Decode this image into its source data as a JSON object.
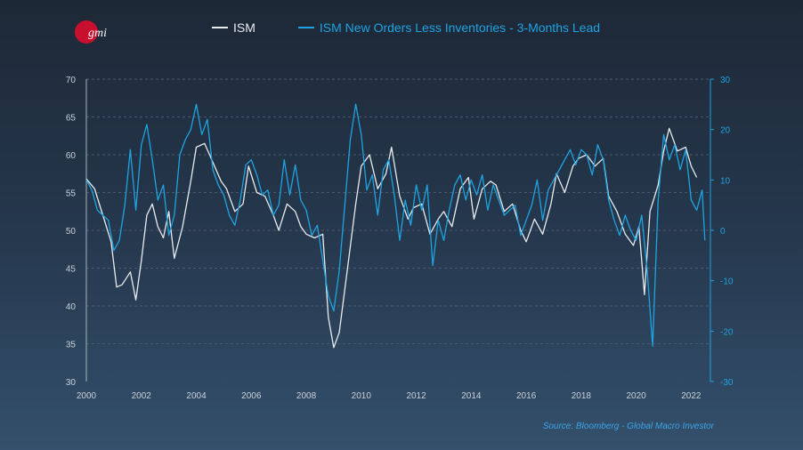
{
  "logo": {
    "text": "gmi",
    "color": "#c8102e"
  },
  "legend": {
    "ism_label": "ISM",
    "orders_label": "ISM New Orders Less Inventories - 3-Months Lead"
  },
  "source_text": "Source: Bloomberg - Global Macro Investor",
  "colors": {
    "ism": "#e8ecf0",
    "orders": "#1fa3e2",
    "axis_left": "#c9d1da",
    "grid": "#4a5a6e",
    "source": "#3ea3e8"
  },
  "chart_data": {
    "type": "line",
    "xlim": [
      2000,
      2022.7
    ],
    "x_ticks": [
      2000,
      2002,
      2004,
      2006,
      2008,
      2010,
      2012,
      2014,
      2016,
      2018,
      2020,
      2022
    ],
    "y_left": {
      "lim": [
        30,
        70
      ],
      "ticks": [
        30,
        35,
        40,
        45,
        50,
        55,
        60,
        65,
        70
      ]
    },
    "y_right": {
      "lim": [
        -30,
        30
      ],
      "ticks": [
        -30,
        -20,
        -10,
        0,
        10,
        20,
        30
      ]
    },
    "grid": "horizontal dashed",
    "legend_position": "top",
    "series": [
      {
        "name": "ISM",
        "axis": "left",
        "points": [
          [
            2000.0,
            56.8
          ],
          [
            2000.3,
            55.5
          ],
          [
            2000.6,
            52.0
          ],
          [
            2000.9,
            48.5
          ],
          [
            2001.1,
            42.5
          ],
          [
            2001.3,
            42.8
          ],
          [
            2001.6,
            44.5
          ],
          [
            2001.8,
            40.8
          ],
          [
            2002.0,
            46.0
          ],
          [
            2002.2,
            52.0
          ],
          [
            2002.4,
            53.5
          ],
          [
            2002.6,
            50.5
          ],
          [
            2002.8,
            49.0
          ],
          [
            2003.0,
            52.5
          ],
          [
            2003.2,
            46.3
          ],
          [
            2003.5,
            50.5
          ],
          [
            2003.8,
            56.5
          ],
          [
            2004.0,
            61.0
          ],
          [
            2004.3,
            61.5
          ],
          [
            2004.6,
            59.0
          ],
          [
            2004.9,
            56.5
          ],
          [
            2005.1,
            55.5
          ],
          [
            2005.4,
            52.5
          ],
          [
            2005.7,
            53.5
          ],
          [
            2005.9,
            58.5
          ],
          [
            2006.2,
            55.0
          ],
          [
            2006.5,
            54.5
          ],
          [
            2006.8,
            52.0
          ],
          [
            2007.0,
            50.0
          ],
          [
            2007.3,
            53.5
          ],
          [
            2007.6,
            52.5
          ],
          [
            2007.8,
            50.5
          ],
          [
            2008.0,
            49.5
          ],
          [
            2008.3,
            49.0
          ],
          [
            2008.6,
            49.5
          ],
          [
            2008.8,
            38.5
          ],
          [
            2009.0,
            34.5
          ],
          [
            2009.2,
            36.5
          ],
          [
            2009.5,
            45.0
          ],
          [
            2009.8,
            53.5
          ],
          [
            2010.0,
            58.5
          ],
          [
            2010.3,
            60.0
          ],
          [
            2010.6,
            55.5
          ],
          [
            2010.9,
            57.5
          ],
          [
            2011.1,
            61.0
          ],
          [
            2011.4,
            54.5
          ],
          [
            2011.7,
            51.5
          ],
          [
            2011.9,
            53.0
          ],
          [
            2012.2,
            53.5
          ],
          [
            2012.5,
            49.5
          ],
          [
            2012.8,
            51.5
          ],
          [
            2013.0,
            52.5
          ],
          [
            2013.3,
            50.5
          ],
          [
            2013.6,
            55.5
          ],
          [
            2013.9,
            57.0
          ],
          [
            2014.1,
            51.5
          ],
          [
            2014.4,
            55.5
          ],
          [
            2014.7,
            56.5
          ],
          [
            2014.9,
            56.0
          ],
          [
            2015.2,
            52.5
          ],
          [
            2015.5,
            53.5
          ],
          [
            2015.8,
            50.0
          ],
          [
            2016.0,
            48.5
          ],
          [
            2016.3,
            51.5
          ],
          [
            2016.6,
            49.5
          ],
          [
            2016.9,
            53.5
          ],
          [
            2017.1,
            57.5
          ],
          [
            2017.4,
            55.0
          ],
          [
            2017.7,
            58.5
          ],
          [
            2017.9,
            59.5
          ],
          [
            2018.2,
            60.0
          ],
          [
            2018.5,
            58.5
          ],
          [
            2018.8,
            59.5
          ],
          [
            2019.0,
            54.5
          ],
          [
            2019.3,
            52.5
          ],
          [
            2019.6,
            49.5
          ],
          [
            2019.9,
            48.0
          ],
          [
            2020.1,
            50.5
          ],
          [
            2020.3,
            41.5
          ],
          [
            2020.5,
            52.5
          ],
          [
            2020.8,
            56.0
          ],
          [
            2021.0,
            60.5
          ],
          [
            2021.2,
            63.5
          ],
          [
            2021.5,
            60.5
          ],
          [
            2021.8,
            61.0
          ],
          [
            2022.0,
            58.5
          ],
          [
            2022.2,
            57.0
          ]
        ]
      },
      {
        "name": "ISM New Orders Less Inventories - 3-Months Lead",
        "axis": "right",
        "points": [
          [
            2000.0,
            10
          ],
          [
            2000.2,
            8
          ],
          [
            2000.4,
            4
          ],
          [
            2000.6,
            3
          ],
          [
            2000.8,
            2
          ],
          [
            2001.0,
            -4
          ],
          [
            2001.2,
            -2
          ],
          [
            2001.4,
            5
          ],
          [
            2001.6,
            16
          ],
          [
            2001.8,
            4
          ],
          [
            2002.0,
            17
          ],
          [
            2002.2,
            21
          ],
          [
            2002.4,
            14
          ],
          [
            2002.6,
            6
          ],
          [
            2002.8,
            9
          ],
          [
            2003.0,
            -1
          ],
          [
            2003.2,
            3
          ],
          [
            2003.4,
            15
          ],
          [
            2003.6,
            18
          ],
          [
            2003.8,
            20
          ],
          [
            2004.0,
            25
          ],
          [
            2004.2,
            19
          ],
          [
            2004.4,
            22
          ],
          [
            2004.6,
            12
          ],
          [
            2004.8,
            9
          ],
          [
            2005.0,
            7
          ],
          [
            2005.2,
            3
          ],
          [
            2005.4,
            1
          ],
          [
            2005.6,
            6
          ],
          [
            2005.8,
            13
          ],
          [
            2006.0,
            14
          ],
          [
            2006.2,
            11
          ],
          [
            2006.4,
            7
          ],
          [
            2006.6,
            8
          ],
          [
            2006.8,
            3
          ],
          [
            2007.0,
            5
          ],
          [
            2007.2,
            14
          ],
          [
            2007.4,
            7
          ],
          [
            2007.6,
            13
          ],
          [
            2007.8,
            6
          ],
          [
            2008.0,
            4
          ],
          [
            2008.2,
            -1
          ],
          [
            2008.4,
            1
          ],
          [
            2008.6,
            -6
          ],
          [
            2008.8,
            -13
          ],
          [
            2009.0,
            -16
          ],
          [
            2009.2,
            -8
          ],
          [
            2009.4,
            5
          ],
          [
            2009.6,
            18
          ],
          [
            2009.8,
            25
          ],
          [
            2010.0,
            19
          ],
          [
            2010.2,
            8
          ],
          [
            2010.4,
            11
          ],
          [
            2010.6,
            3
          ],
          [
            2010.8,
            12
          ],
          [
            2011.0,
            14
          ],
          [
            2011.2,
            7
          ],
          [
            2011.4,
            -2
          ],
          [
            2011.6,
            6
          ],
          [
            2011.8,
            1
          ],
          [
            2012.0,
            9
          ],
          [
            2012.2,
            4
          ],
          [
            2012.4,
            9
          ],
          [
            2012.6,
            -7
          ],
          [
            2012.8,
            2
          ],
          [
            2013.0,
            -2
          ],
          [
            2013.2,
            4
          ],
          [
            2013.4,
            9
          ],
          [
            2013.6,
            11
          ],
          [
            2013.8,
            6
          ],
          [
            2014.0,
            10
          ],
          [
            2014.2,
            7
          ],
          [
            2014.4,
            11
          ],
          [
            2014.6,
            4
          ],
          [
            2014.8,
            9
          ],
          [
            2015.0,
            6
          ],
          [
            2015.2,
            3
          ],
          [
            2015.4,
            4
          ],
          [
            2015.6,
            5
          ],
          [
            2015.8,
            -1
          ],
          [
            2016.0,
            2
          ],
          [
            2016.2,
            5
          ],
          [
            2016.4,
            10
          ],
          [
            2016.6,
            2
          ],
          [
            2016.8,
            8
          ],
          [
            2017.0,
            10
          ],
          [
            2017.2,
            12
          ],
          [
            2017.4,
            14
          ],
          [
            2017.6,
            16
          ],
          [
            2017.8,
            13
          ],
          [
            2018.0,
            16
          ],
          [
            2018.2,
            15
          ],
          [
            2018.4,
            11
          ],
          [
            2018.6,
            17
          ],
          [
            2018.8,
            14
          ],
          [
            2019.0,
            6
          ],
          [
            2019.2,
            2
          ],
          [
            2019.4,
            -1
          ],
          [
            2019.6,
            3
          ],
          [
            2019.8,
            0
          ],
          [
            2020.0,
            -2
          ],
          [
            2020.2,
            3
          ],
          [
            2020.4,
            -8
          ],
          [
            2020.6,
            -23
          ],
          [
            2020.8,
            6
          ],
          [
            2021.0,
            19
          ],
          [
            2021.2,
            14
          ],
          [
            2021.4,
            17
          ],
          [
            2021.6,
            12
          ],
          [
            2021.8,
            16
          ],
          [
            2022.0,
            6
          ],
          [
            2022.2,
            4
          ],
          [
            2022.4,
            8
          ],
          [
            2022.5,
            -2
          ]
        ]
      }
    ]
  }
}
